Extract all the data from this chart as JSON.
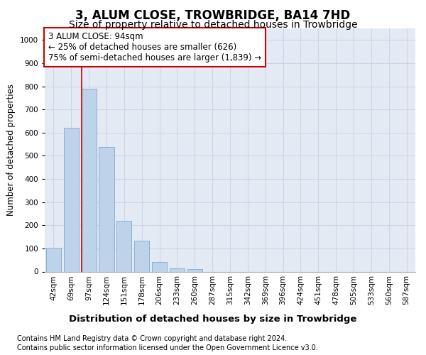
{
  "title": "3, ALUM CLOSE, TROWBRIDGE, BA14 7HD",
  "subtitle": "Size of property relative to detached houses in Trowbridge",
  "xlabel": "Distribution of detached houses by size in Trowbridge",
  "ylabel": "Number of detached properties",
  "bar_labels": [
    "42sqm",
    "69sqm",
    "97sqm",
    "124sqm",
    "151sqm",
    "178sqm",
    "206sqm",
    "233sqm",
    "260sqm",
    "287sqm",
    "315sqm",
    "342sqm",
    "369sqm",
    "396sqm",
    "424sqm",
    "451sqm",
    "478sqm",
    "505sqm",
    "533sqm",
    "560sqm",
    "587sqm"
  ],
  "bar_values": [
    103,
    622,
    790,
    537,
    220,
    132,
    40,
    15,
    10,
    0,
    0,
    0,
    0,
    0,
    0,
    0,
    0,
    0,
    0,
    0,
    0
  ],
  "bar_color": "#bed3ea",
  "bar_edge_color": "#7aaad0",
  "vline_color": "#cc0000",
  "vline_xindex": 2,
  "annotation_line1": "3 ALUM CLOSE: 94sqm",
  "annotation_line2": "← 25% of detached houses are smaller (626)",
  "annotation_line3": "75% of semi-detached houses are larger (1,839) →",
  "annotation_box_color": "#cc0000",
  "ylim": [
    0,
    1050
  ],
  "yticks": [
    0,
    100,
    200,
    300,
    400,
    500,
    600,
    700,
    800,
    900,
    1000
  ],
  "grid_color": "#c8d4e8",
  "background_color": "#e4eaf4",
  "footer_line1": "Contains HM Land Registry data © Crown copyright and database right 2024.",
  "footer_line2": "Contains public sector information licensed under the Open Government Licence v3.0.",
  "title_fontsize": 12,
  "subtitle_fontsize": 10,
  "xlabel_fontsize": 9.5,
  "ylabel_fontsize": 8.5,
  "tick_fontsize": 7.5,
  "annotation_fontsize": 8.5,
  "footer_fontsize": 7
}
